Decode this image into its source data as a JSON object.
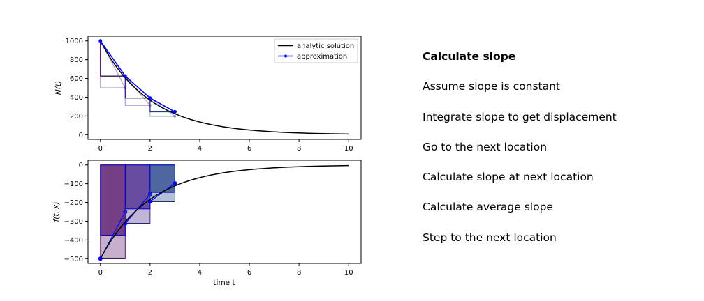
{
  "chart_data": [
    {
      "type": "line",
      "title": "",
      "xlabel": "",
      "ylabel": "N(t)",
      "xlim": [
        -0.5,
        10.5
      ],
      "ylim": [
        -50,
        1050
      ],
      "xticks": [
        "0",
        "2",
        "4",
        "6",
        "8",
        "10"
      ],
      "yticks": [
        "0",
        "200",
        "400",
        "600",
        "800",
        "1000"
      ],
      "legend_position": "top-right",
      "series": [
        {
          "name": "analytic solution",
          "color": "#000000",
          "function": "1000*exp(-0.5*t)",
          "x_range": [
            0,
            10
          ]
        },
        {
          "name": "approximation",
          "color": "#0000ff",
          "x": [
            0,
            1,
            2,
            3
          ],
          "y": [
            1000,
            625,
            390.6,
            244.1
          ]
        }
      ],
      "construction_steps": [
        {
          "x0": 0,
          "x1": 1,
          "y_start": 1000,
          "y_euler": 500,
          "y_next": 625,
          "color": "#3d0d5e"
        },
        {
          "x0": 1,
          "x1": 2,
          "y_start": 625,
          "y_euler": 312.5,
          "y_next": 390.6,
          "color": "#3a1a82"
        },
        {
          "x0": 2,
          "x1": 3,
          "y_start": 390.6,
          "y_euler": 195.3,
          "y_next": 244.1,
          "color": "#243a8a"
        }
      ]
    },
    {
      "type": "line",
      "title": "",
      "xlabel": "time t",
      "ylabel": "f(t, x)",
      "xlim": [
        -0.5,
        10.5
      ],
      "ylim": [
        -525,
        25
      ],
      "xticks": [
        "0",
        "2",
        "4",
        "6",
        "8",
        "10"
      ],
      "yticks": [
        "0",
        "−100",
        "−200",
        "−300",
        "−400",
        "−500"
      ],
      "series": [
        {
          "name": "",
          "color": "#000000",
          "function": "-500*exp(-0.5*t)",
          "x_range": [
            0,
            10
          ]
        }
      ],
      "slope_steps": [
        {
          "x0": 0,
          "x1": 1,
          "slope_start": -500,
          "slope_end": -250,
          "avg_slope": -375,
          "color": "#5a1a6e"
        },
        {
          "x0": 1,
          "x1": 2,
          "slope_start": -312.5,
          "slope_end": -156.3,
          "avg_slope": -234.4,
          "color": "#4a2a8c"
        },
        {
          "x0": 2,
          "x1": 3,
          "slope_start": -195.3,
          "slope_end": -97.7,
          "avg_slope": -146.5,
          "color": "#2c4a8e"
        }
      ]
    }
  ],
  "steps": [
    {
      "label": "Calculate slope",
      "active": true
    },
    {
      "label": "Assume slope is constant",
      "active": false
    },
    {
      "label": "Integrate slope to get displacement",
      "active": false
    },
    {
      "label": "Go to the next location",
      "active": false
    },
    {
      "label": "Calculate slope at next location",
      "active": false
    },
    {
      "label": "Calculate average slope",
      "active": false
    },
    {
      "label": "Step to the next location",
      "active": false
    }
  ]
}
